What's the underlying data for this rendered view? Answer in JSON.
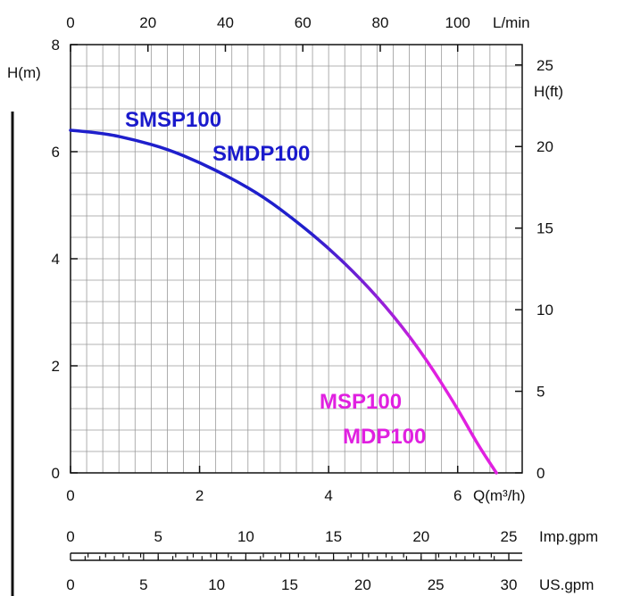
{
  "chart_data": {
    "type": "line",
    "x_label": "Q(m³/h)",
    "y_label": "H(m)",
    "y2_label": "H(ft)",
    "top_axis_label": "L/min",
    "xlim": [
      0,
      7
    ],
    "ylim": [
      0,
      8
    ],
    "grid": true,
    "x_ticks": [
      "0",
      "2",
      "4",
      "6"
    ],
    "y_ticks": [
      "0",
      "2",
      "4",
      "6",
      "8"
    ],
    "y2_ticks": [
      "0",
      "5",
      "10",
      "15",
      "20",
      "25"
    ],
    "top_ticks": [
      "0",
      "20",
      "40",
      "60",
      "80",
      "100"
    ],
    "imp_gpm": {
      "label": "Imp.gpm",
      "ticks": [
        "0",
        "5",
        "10",
        "15",
        "20",
        "25"
      ]
    },
    "us_gpm": {
      "label": "US.gpm",
      "ticks": [
        "0",
        "5",
        "10",
        "15",
        "20",
        "25",
        "30"
      ]
    },
    "series": [
      {
        "color_start": "#1f1fcc",
        "color_end": "#e020e0",
        "x": [
          0,
          0.5,
          1.0,
          1.5,
          2.0,
          2.5,
          3.0,
          3.5,
          4.0,
          4.5,
          5.0,
          5.5,
          6.0,
          6.3,
          6.6
        ],
        "y": [
          6.4,
          6.35,
          6.22,
          6.05,
          5.8,
          5.5,
          5.15,
          4.7,
          4.2,
          3.62,
          2.95,
          2.15,
          1.2,
          0.55,
          0.0
        ]
      }
    ],
    "annotations": [
      {
        "text": "SMSP100",
        "color": "#1a1acc"
      },
      {
        "text": "SMDP100",
        "color": "#1a1acc"
      },
      {
        "text": "MSP100",
        "color": "#e020e0"
      },
      {
        "text": "MDP100",
        "color": "#e020e0"
      }
    ]
  }
}
